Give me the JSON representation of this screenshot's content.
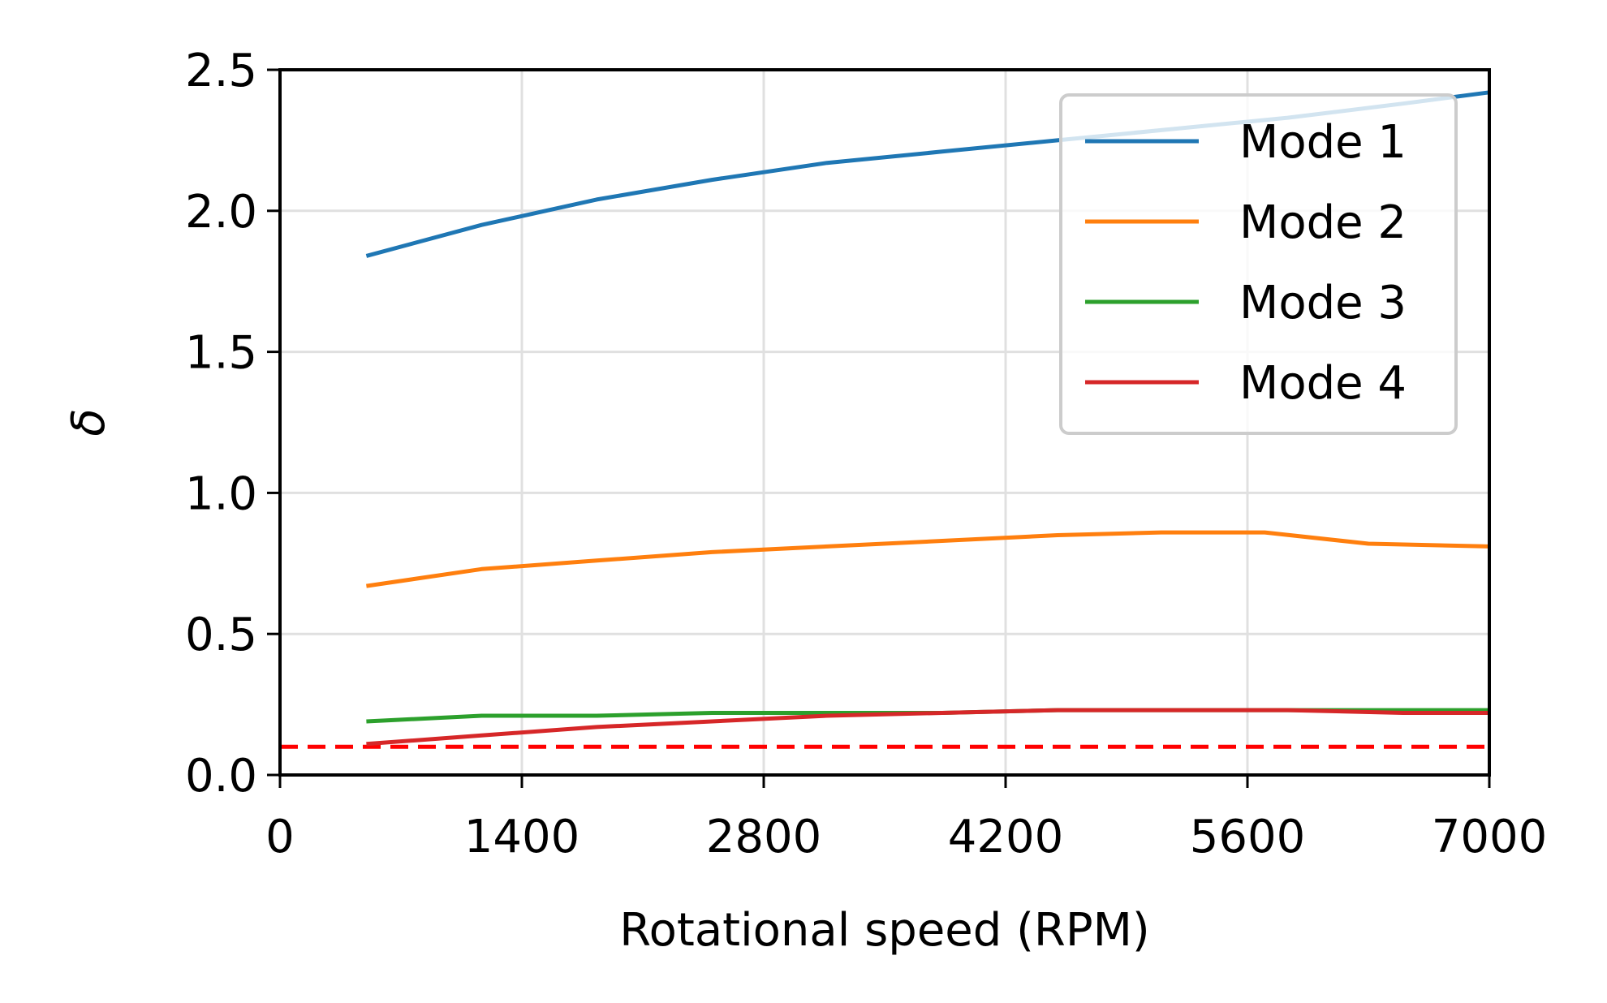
{
  "chart_data": {
    "type": "line",
    "title": "",
    "xlabel": "Rotational speed (RPM)",
    "ylabel": "δ",
    "xlim": [
      0,
      7000
    ],
    "ylim": [
      0.0,
      2.5
    ],
    "xticks": [
      0,
      1400,
      2800,
      4200,
      5600,
      7000
    ],
    "xtick_labels": [
      "0",
      "1400",
      "2800",
      "4200",
      "5600",
      "7000"
    ],
    "yticks": [
      0.0,
      0.5,
      1.0,
      1.5,
      2.0,
      2.5
    ],
    "ytick_labels": [
      "0.0",
      "0.5",
      "1.0",
      "1.5",
      "2.0",
      "2.5"
    ],
    "grid": true,
    "legend_position": "top-right",
    "series": [
      {
        "name": "Mode 1",
        "color": "#1f77b4",
        "x": [
          500,
          1167,
          1833,
          2500,
          3167,
          3833,
          4500,
          5167,
          5833,
          6500,
          7000
        ],
        "y": [
          1.84,
          1.95,
          2.04,
          2.11,
          2.17,
          2.21,
          2.25,
          2.29,
          2.33,
          2.38,
          2.42
        ]
      },
      {
        "name": "Mode 2",
        "color": "#ff7f0e",
        "x": [
          500,
          1167,
          1833,
          2500,
          3167,
          3833,
          4500,
          5100,
          5700,
          6300,
          7000
        ],
        "y": [
          0.67,
          0.73,
          0.76,
          0.79,
          0.81,
          0.83,
          0.85,
          0.86,
          0.86,
          0.82,
          0.81
        ]
      },
      {
        "name": "Mode 3",
        "color": "#2ca02c",
        "x": [
          500,
          1167,
          1833,
          2500,
          3167,
          3833,
          4500,
          5167,
          5833,
          6500,
          7000
        ],
        "y": [
          0.19,
          0.21,
          0.21,
          0.22,
          0.22,
          0.22,
          0.23,
          0.23,
          0.23,
          0.23,
          0.23
        ]
      },
      {
        "name": "Mode 4",
        "color": "#d62728",
        "x": [
          500,
          1167,
          1833,
          2500,
          3167,
          3833,
          4500,
          5167,
          5833,
          6500,
          7000
        ],
        "y": [
          0.11,
          0.14,
          0.17,
          0.19,
          0.21,
          0.22,
          0.23,
          0.23,
          0.23,
          0.22,
          0.22
        ]
      }
    ],
    "reference_lines": [
      {
        "y": 0.1,
        "color": "#ff0000",
        "style": "dashed"
      }
    ]
  }
}
